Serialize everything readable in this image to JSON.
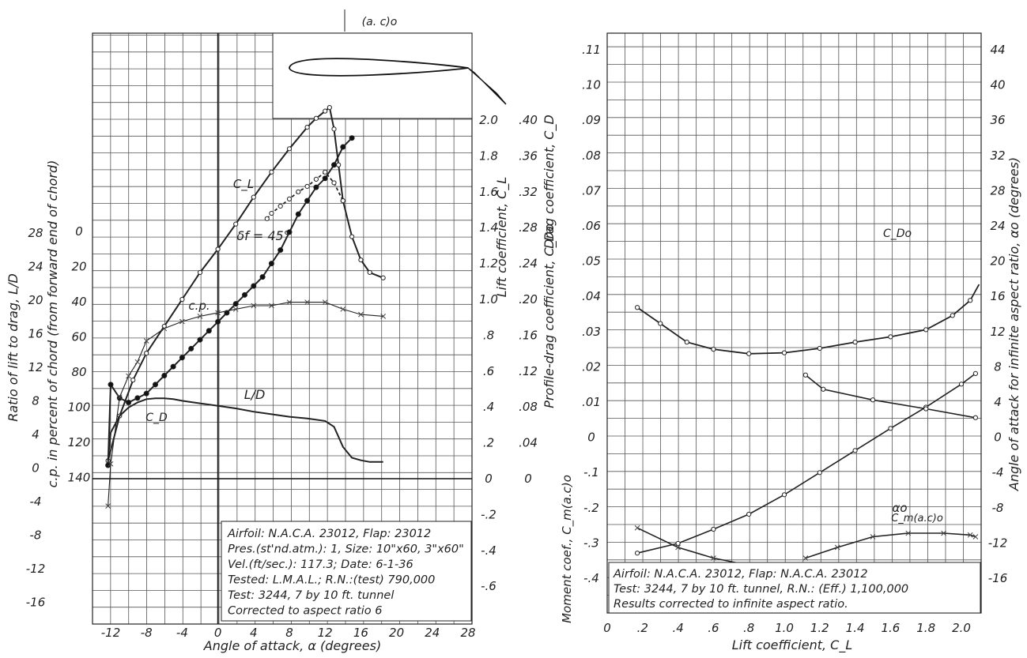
{
  "chart_data": [
    {
      "type": "line",
      "xlabel": "Angle of attack, α (degrees)",
      "x_ticks": [
        -12,
        -8,
        -4,
        0,
        4,
        8,
        12,
        16,
        20,
        24,
        28
      ],
      "xlim": [
        -14,
        28
      ],
      "left_axis_1": {
        "label": "Ratio of lift to drag, L/D",
        "ticks": [
          "28",
          "24",
          "20",
          "16",
          "12",
          "8",
          "4",
          "0",
          "-4",
          "-8",
          "-12",
          "-16"
        ]
      },
      "left_axis_2": {
        "label": "c.p. in percent of chord (from forward end of chord)",
        "ticks": [
          "0",
          "20",
          "40",
          "60",
          "80",
          "100",
          "120",
          "140"
        ]
      },
      "right_axis_1": {
        "label": "Lift coefficient, C_L",
        "ticks": [
          "2.0",
          "1.8",
          "1.6",
          "1.4",
          "1.2",
          "1.0",
          ".8",
          ".6",
          ".4",
          ".2",
          "0",
          "-.2",
          "-.4",
          "-.6"
        ]
      },
      "right_axis_2": {
        "label": "Drag coefficient, C_D",
        "ticks": [
          ".40",
          ".36",
          ".32",
          ".28",
          ".24",
          ".20",
          ".16",
          ".12",
          ".08",
          ".04",
          "0"
        ]
      },
      "inset_label": "(a. c)o",
      "series": [
        {
          "name": "C_L",
          "x": [
            -12.3,
            -11,
            -9.5,
            -8,
            -6,
            -4,
            -2,
            0,
            2,
            4,
            6,
            8,
            10,
            11,
            12,
            12.5,
            13,
            13.5,
            14,
            15,
            16,
            17,
            18.5
          ],
          "y": [
            0.1,
            0.35,
            0.55,
            0.7,
            0.85,
            1.0,
            1.15,
            1.28,
            1.42,
            1.57,
            1.71,
            1.84,
            1.96,
            2.01,
            2.05,
            2.07,
            1.95,
            1.75,
            1.55,
            1.35,
            1.22,
            1.15,
            1.12
          ]
        },
        {
          "name": "δf = 45°",
          "x": [
            5.5,
            6,
            7,
            8,
            9,
            10,
            11,
            12,
            13,
            14
          ],
          "y": [
            1.45,
            1.48,
            1.52,
            1.56,
            1.6,
            1.63,
            1.67,
            1.71,
            1.65,
            1.55
          ]
        },
        {
          "name": "C_D",
          "x": [
            -12.3,
            -12,
            -11,
            -10,
            -9,
            -8,
            -7,
            -6,
            -5,
            -4,
            -3,
            -2,
            -1,
            0,
            1,
            2,
            3,
            4,
            5,
            6,
            7,
            8,
            9,
            10,
            11,
            12,
            13,
            14,
            15
          ],
          "y": [
            0.015,
            0.105,
            0.09,
            0.085,
            0.09,
            0.095,
            0.105,
            0.115,
            0.125,
            0.135,
            0.145,
            0.155,
            0.165,
            0.175,
            0.185,
            0.195,
            0.205,
            0.215,
            0.225,
            0.24,
            0.255,
            0.275,
            0.295,
            0.31,
            0.325,
            0.335,
            0.35,
            0.37,
            0.38
          ]
        },
        {
          "name": "c.p.",
          "x": [
            -12.3,
            -12,
            -11,
            -10,
            -9,
            -8,
            -6,
            -4,
            -2,
            0,
            2,
            4,
            6,
            8,
            10,
            12,
            14,
            16,
            18.5
          ],
          "y": [
            154,
            130,
            92,
            80,
            72,
            60,
            53,
            49,
            46,
            44,
            42,
            40,
            40,
            38,
            38,
            38,
            42,
            45,
            46
          ]
        },
        {
          "name": "L/D",
          "x": [
            -12.3,
            -12,
            -11,
            -10,
            -9,
            -8,
            -7,
            -6,
            -5,
            -4,
            -2,
            0,
            2,
            4,
            6,
            8,
            10,
            12,
            13,
            13.5,
            14,
            15,
            16,
            17,
            18.5
          ],
          "y": [
            2.2,
            5.5,
            7.5,
            8.5,
            9.1,
            9.5,
            9.6,
            9.6,
            9.5,
            9.3,
            9.0,
            8.7,
            8.4,
            8.0,
            7.7,
            7.4,
            7.2,
            6.9,
            6.2,
            5.0,
            3.8,
            2.5,
            2.2,
            2.0,
            2.0
          ]
        }
      ],
      "note": [
        "Airfoil: N.A.C.A. 23012, Flap: 23012",
        "Pres.(st'nd.atm.): 1, Size: 10\"x60, 3\"x60\"",
        "Vel.(ft/sec.): 117.3; Date: 6-1-36",
        "Tested: L.M.A.L.; R.N.:(test) 790,000",
        "Test: 3244,  7 by 10 ft. tunnel",
        "Corrected to aspect ratio 6"
      ]
    },
    {
      "type": "line",
      "xlabel": "Lift coefficient, C_L",
      "x_ticks": [
        "0",
        ".2",
        ".4",
        ".6",
        ".8",
        "1.0",
        "1.2",
        "1.4",
        "1.6",
        "1.8",
        "2.0"
      ],
      "xlim": [
        0,
        2.14
      ],
      "left_axis_1": {
        "label": "Profile-drag coefficient, C_Do",
        "ticks": [
          ".11",
          ".10",
          ".09",
          ".08",
          ".07",
          ".06",
          ".05",
          ".04",
          ".03",
          ".02",
          ".01",
          "0",
          "-.1",
          "-.2",
          "-.3",
          "-.4"
        ]
      },
      "left_axis_2": {
        "label": "Moment coef., C_m(a.c)o"
      },
      "right_axis": {
        "label": "Angle of attack for infinite aspect ratio, αo (degrees)",
        "ticks": [
          "44",
          "40",
          "36",
          "32",
          "28",
          "24",
          "20",
          "16",
          "12",
          "8",
          "4",
          "0",
          "-4",
          "-8",
          "-12",
          "-16"
        ]
      },
      "series": [
        {
          "name": "C_Do",
          "x": [
            0.17,
            0.3,
            0.45,
            0.6,
            0.8,
            1.0,
            1.2,
            1.4,
            1.6,
            1.8,
            1.95,
            2.05,
            2.1
          ],
          "y": [
            0.075,
            0.066,
            0.0555,
            0.0515,
            0.049,
            0.0495,
            0.052,
            0.0555,
            0.0585,
            0.0625,
            0.0705,
            0.079,
            0.088
          ]
        },
        {
          "name": "αo",
          "x": [
            0.17,
            0.4,
            0.6,
            0.8,
            1.0,
            1.2,
            1.4,
            1.6,
            1.8,
            2.0,
            2.08
          ],
          "y": [
            -12.7,
            -11.6,
            -10.0,
            -8.3,
            -6.1,
            -3.6,
            -1.1,
            1.4,
            3.8,
            6.4,
            7.6
          ]
        },
        {
          "name": "C_m(a.c)o",
          "x": [
            0.17,
            0.4,
            0.6,
            0.8,
            1.0,
            1.1
          ],
          "y": [
            -0.245,
            -0.3,
            -0.33,
            -0.35,
            -0.36,
            -0.355
          ]
        },
        {
          "name": "C_m(a.c)o flap",
          "x": [
            1.12,
            1.3,
            1.5,
            1.7,
            1.9,
            2.05,
            2.08
          ],
          "y": [
            -0.33,
            -0.3,
            -0.27,
            -0.26,
            -0.26,
            -0.265,
            -0.27
          ]
        },
        {
          "name": "C_Do flap",
          "x": [
            1.12,
            1.22,
            1.5,
            1.8,
            2.08
          ],
          "y": [
            0.037,
            0.029,
            0.023,
            0.018,
            0.013
          ]
        }
      ],
      "note": [
        "Airfoil: N.A.C.A. 23012,           Flap: N.A.C.A. 23012",
        "Test: 3244, 7 by 10 ft. tunnel, R.N.: (Eff.) 1,100,000",
        "Results corrected to infinite aspect ratio."
      ]
    }
  ]
}
